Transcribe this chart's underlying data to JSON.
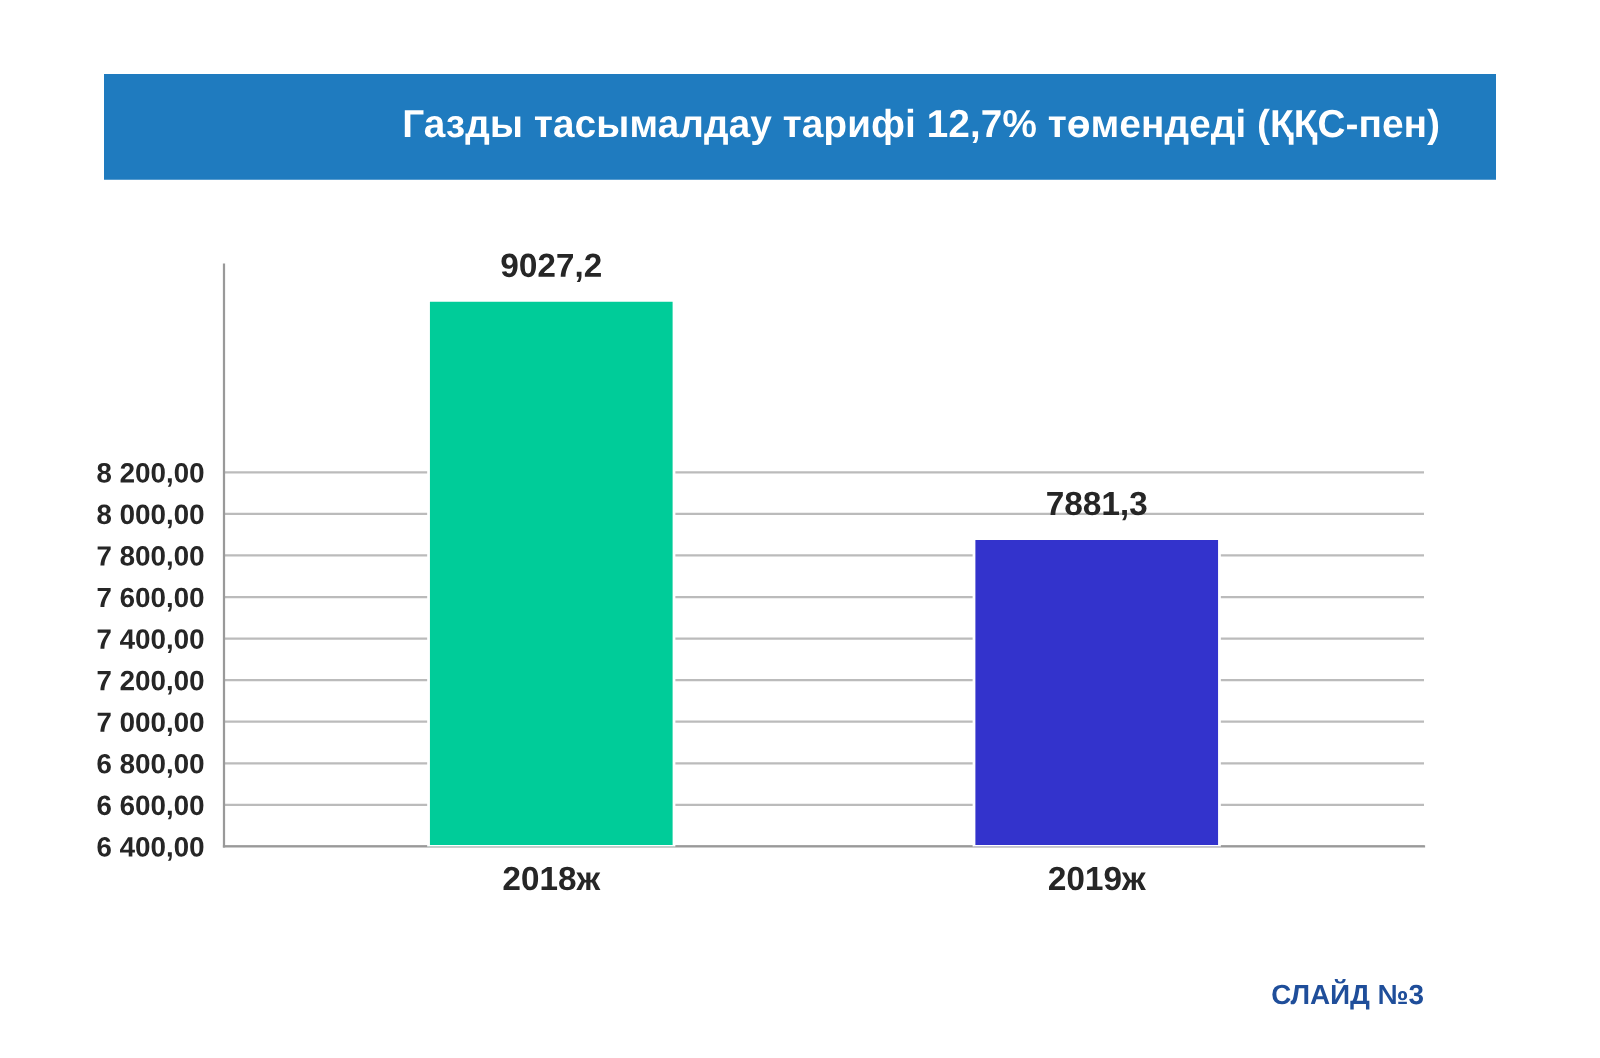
{
  "chart_data": {
    "type": "bar",
    "title": "Газды тасымалдау тарифі 12,7% төмендеді (ҚҚС-пен)",
    "categories": [
      "2018ж",
      "2019ж"
    ],
    "values": [
      9027.2,
      7881.3
    ],
    "colors": [
      "#00cc99",
      "#3333cc"
    ],
    "value_labels": [
      "9027,2",
      "7881,3"
    ],
    "ylim": [
      6400,
      9200
    ],
    "yticks": [
      {
        "value": 6400,
        "label": "6 400,00"
      },
      {
        "value": 6600,
        "label": "6 600,00"
      },
      {
        "value": 6800,
        "label": "6 800,00"
      },
      {
        "value": 7000,
        "label": "7 000,00"
      },
      {
        "value": 7200,
        "label": "7 200,00"
      },
      {
        "value": 7400,
        "label": "7 400,00"
      },
      {
        "value": 7600,
        "label": "7 600,00"
      },
      {
        "value": 7800,
        "label": "7 800,00"
      },
      {
        "value": 8000,
        "label": "8 000,00"
      },
      {
        "value": 8200,
        "label": "8 200,00"
      }
    ],
    "grid": "y",
    "annotations": [
      "СЛАЙД №3"
    ]
  }
}
